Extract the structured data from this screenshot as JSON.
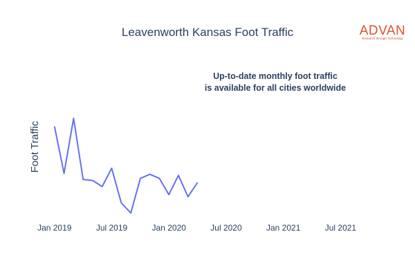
{
  "brand": {
    "name": "ADVAN",
    "tagline": "Research through Technology",
    "color": "#d9542b"
  },
  "chart_data": {
    "type": "line",
    "title": "Leavenworth Kansas Foot Traffic",
    "annotation": [
      "Up-to-date monthly foot traffic",
      "is available for all cities worldwide"
    ],
    "xlabel": "",
    "ylabel": "Foot Traffic",
    "line_color": "#636efa",
    "grid": false,
    "x_ticks": [
      "Jan 2019",
      "Jul 2019",
      "Jan 2020",
      "Jul 2020",
      "Jan 2021",
      "Jul 2021"
    ],
    "x_tick_dates": [
      "2019-01",
      "2019-07",
      "2020-01",
      "2020-07",
      "2021-01",
      "2021-07"
    ],
    "xlim": [
      "2018-12",
      "2021-09"
    ],
    "ylim": [
      0,
      100
    ],
    "y_ticks_visible": false,
    "series": [
      {
        "x": [
          "2019-01",
          "2019-02",
          "2019-03",
          "2019-04",
          "2019-05",
          "2019-06",
          "2019-07",
          "2019-08",
          "2019-09",
          "2019-10",
          "2019-11",
          "2019-12",
          "2020-01",
          "2020-02",
          "2020-03",
          "2020-04"
        ],
        "values": [
          88,
          42,
          96,
          36,
          35,
          29,
          47,
          13,
          3,
          37,
          41,
          37,
          21,
          40,
          19,
          33
        ]
      }
    ]
  }
}
